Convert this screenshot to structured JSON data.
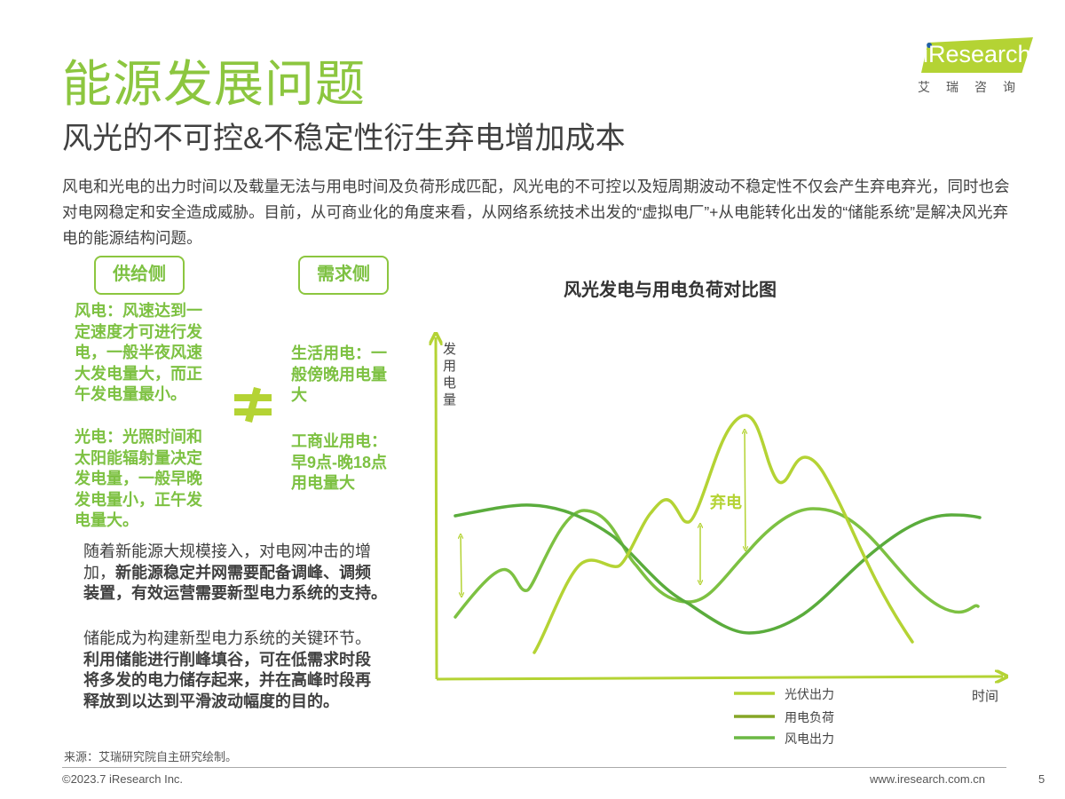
{
  "header": {
    "title": "能源发展问题",
    "subtitle": "风光的不可控&不稳定性衍生弃电增加成本"
  },
  "logo": {
    "text": "iResearch",
    "cn": "艾瑞咨询"
  },
  "intro": "风电和光电的出力时间以及载量无法与用电时间及负荷形成匹配，风光电的不可控以及短周期波动不稳定性不仅会产生弃电弃光，同时也会对电网稳定和安全造成威胁。目前，从可商业化的角度来看，从网络系统技术出发的“虚拟电厂”+从电能转化出发的“储能系统”是解决风光弃电的能源结构问题。",
  "supply": {
    "label": "供给侧",
    "wind": "风电：风速达到一\n定速度才可进行发\n电，一般半夜风速\n大发电量大，而正\n午发电量最小。",
    "solar": "光电：光照时间和\n太阳能辐射量决定\n发电量，一般早晚\n发电量小，正午发\n电量大。"
  },
  "demand": {
    "label": "需求侧",
    "residential": "生活用电：一\n般傍晚用电量\n大",
    "commercial": "工商业用电：\n早9点-晚18点\n用电量大"
  },
  "not_equal_symbol": "≠",
  "para1": {
    "normal1": "随着新能源大规模接入，对电网冲击的增\n加，",
    "bold1": "新能源稳定并网需要配备调峰、调频\n装置，有效运营需要新型电力系统的支持。"
  },
  "para2": {
    "normal1": "储能成为构建新型电力系统的关键环节。\n",
    "bold1": "利用储能进行削峰填谷，可在低需求时段\n将多发的电力储存起来，并在高峰时段再\n释放到以达到平滑波动幅度的目的。"
  },
  "chart": {
    "title": "风光发电与用电负荷对比图",
    "ylabel": "发用电量",
    "xlabel": "时间",
    "annotation": "弃电",
    "legend": [
      {
        "label": "光伏出力",
        "color": "#b4d334"
      },
      {
        "label": "用电负荷",
        "color": "#86a626"
      },
      {
        "label": "风电出力",
        "color": "#6bb844"
      }
    ],
    "axis_color": "#b4d334"
  },
  "footer": {
    "source": "来源：艾瑞研究院自主研究绘制。",
    "copyright": "©2023.7 iResearch Inc.",
    "website": "www.iresearch.com.cn",
    "page": "5"
  }
}
